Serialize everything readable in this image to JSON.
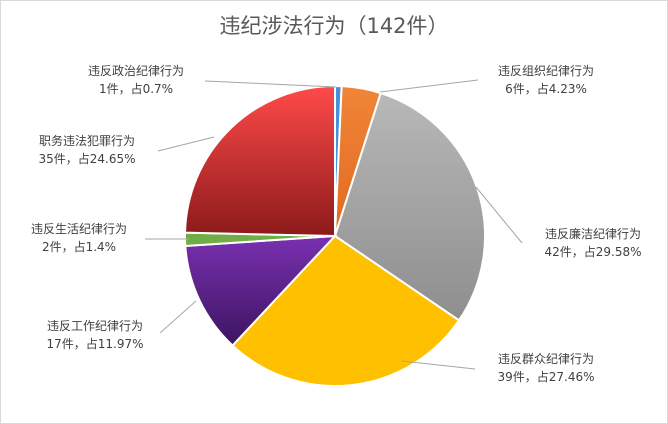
{
  "chart_data": {
    "type": "pie",
    "title": "违纪涉法行为（142件）",
    "total": 142,
    "slices": [
      {
        "name": "违反政治纪律行为",
        "count": 1,
        "count_label": "1件，占0.7%",
        "percent": 0.7,
        "color": "#4a90d9"
      },
      {
        "name": "违反组织纪律行为",
        "count": 6,
        "count_label": "6件，占4.23%",
        "percent": 4.23,
        "color": "#ed7d31"
      },
      {
        "name": "违反廉洁纪律行为",
        "count": 42,
        "count_label": "42件，占29.58%",
        "percent": 29.58,
        "color": "#a5a5a5"
      },
      {
        "name": "违反群众纪律行为",
        "count": 39,
        "count_label": "39件，占27.46%",
        "percent": 27.46,
        "color": "#ffc000"
      },
      {
        "name": "违反工作纪律行为",
        "count": 17,
        "count_label": "17件，占11.97%",
        "percent": 11.97,
        "color": "#7030a0"
      },
      {
        "name": "违反生活纪律行为",
        "count": 2,
        "count_label": "2件，占1.4%",
        "percent": 1.4,
        "color": "#70ad47"
      },
      {
        "name": "职务违法犯罪行为",
        "count": 35,
        "count_label": "35件，占24.65%",
        "percent": 24.65,
        "color": "#ff4040"
      }
    ]
  }
}
